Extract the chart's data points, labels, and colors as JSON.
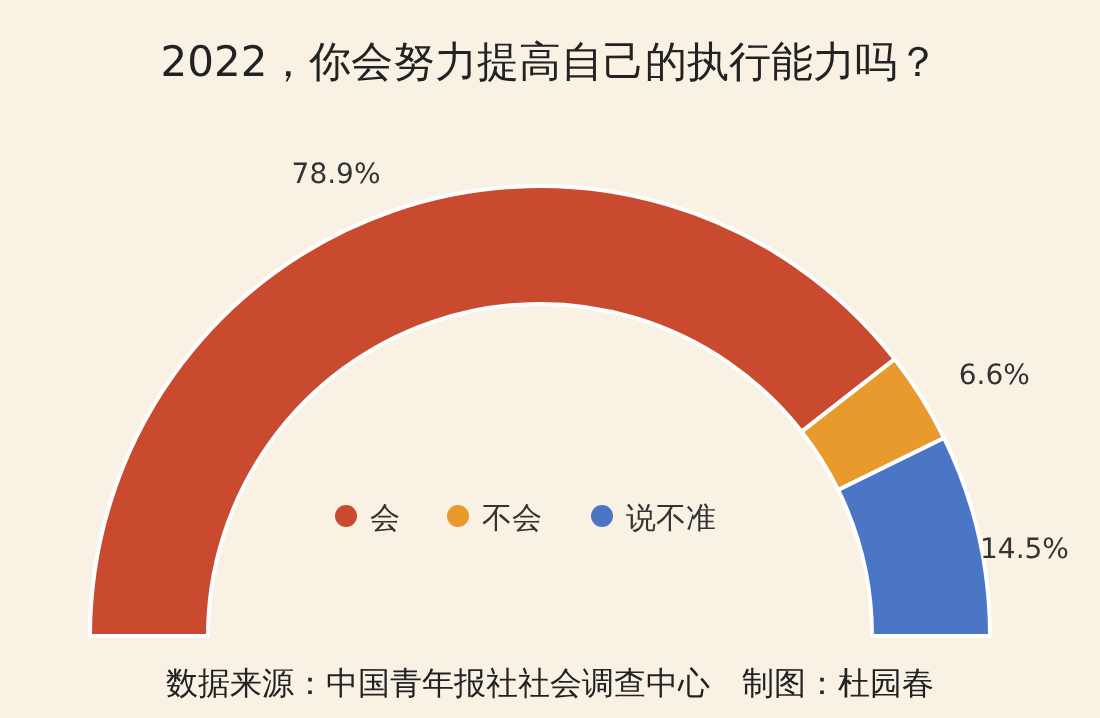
{
  "chart_data": {
    "type": "donut",
    "title": "2022，你会努力提高自己的执行能力吗？",
    "categories": [
      "会",
      "不会",
      "说不准"
    ],
    "values": [
      78.9,
      6.6,
      14.5
    ],
    "colors": [
      "#c94a2f",
      "#e89a2c",
      "#4b76c6"
    ],
    "value_labels": [
      "78.9%",
      "6.6%",
      "14.5%"
    ],
    "legend": "bottom",
    "annotations": [
      "数据来源：中国青年报社社会调查中心　制图：杜园春"
    ]
  }
}
